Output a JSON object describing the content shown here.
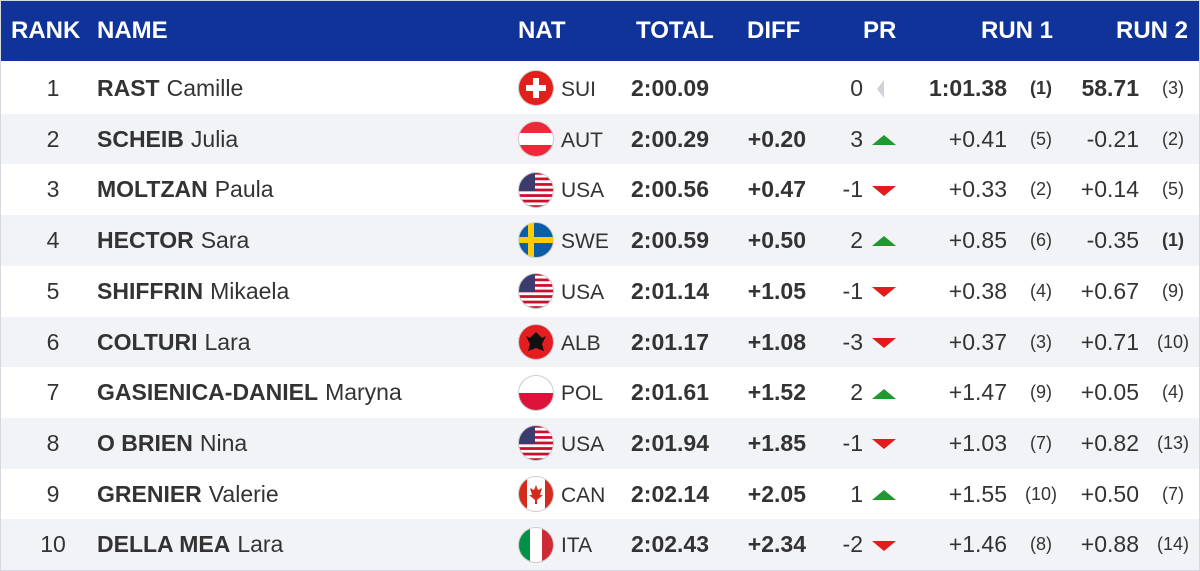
{
  "header": [
    "RANK",
    "NAME",
    "NAT",
    "TOTAL",
    "DIFF",
    "PR",
    "RUN 1",
    "RUN 2"
  ],
  "rows": [
    {
      "rank": 1,
      "last": "RAST",
      "first": "Camille",
      "nat": "SUI",
      "total": "2:00.09",
      "pr": 0,
      "run1": "1:01.38",
      "run1_rank": "(1)",
      "run2": "58.71",
      "run2_rank": "(3)"
    },
    {
      "rank": 2,
      "last": "SCHEIB",
      "first": "Julia",
      "nat": "AUT",
      "total": "2:00.29",
      "diff": "+0.20",
      "pr": 3,
      "run1": "+0.41",
      "run1_rank": "(5)",
      "run2": "-0.21",
      "run2_rank": "(2)"
    },
    {
      "rank": 3,
      "last": "MOLTZAN",
      "first": "Paula",
      "nat": "USA",
      "total": "2:00.56",
      "diff": "+0.47",
      "pr": -1,
      "run1": "+0.33",
      "run1_rank": "(2)",
      "run2": "+0.14",
      "run2_rank": "(5)"
    },
    {
      "rank": 4,
      "last": "HECTOR",
      "first": "Sara",
      "nat": "SWE",
      "total": "2:00.59",
      "diff": "+0.50",
      "pr": 2,
      "run1": "+0.85",
      "run1_rank": "(6)",
      "run2": "-0.35",
      "run2_rank": "(1)"
    },
    {
      "rank": 5,
      "last": "SHIFFRIN",
      "first": "Mikaela",
      "nat": "USA",
      "total": "2:01.14",
      "diff": "+1.05",
      "pr": -1,
      "run1": "+0.38",
      "run1_rank": "(4)",
      "run2": "+0.67",
      "run2_rank": "(9)"
    },
    {
      "rank": 6,
      "last": "COLTURI",
      "first": "Lara",
      "nat": "ALB",
      "total": "2:01.17",
      "diff": "+1.08",
      "pr": -3,
      "run1": "+0.37",
      "run1_rank": "(3)",
      "run2": "+0.71",
      "run2_rank": "(10)"
    },
    {
      "rank": 7,
      "last": "GASIENICA-DANIEL",
      "first": "Maryna",
      "nat": "POL",
      "total": "2:01.61",
      "diff": "+1.52",
      "pr": 2,
      "run1": "+1.47",
      "run1_rank": "(9)",
      "run2": "+0.05",
      "run2_rank": "(4)"
    },
    {
      "rank": 8,
      "last": "O BRIEN",
      "first": "Nina",
      "nat": "USA",
      "total": "2:01.94",
      "diff": "+1.85",
      "pr": -1,
      "run1": "+1.03",
      "run1_rank": "(7)",
      "run2": "+0.82",
      "run2_rank": "(13)"
    },
    {
      "rank": 9,
      "last": "GRENIER",
      "first": "Valerie",
      "nat": "CAN",
      "total": "2:02.14",
      "diff": "+2.05",
      "pr": 1,
      "run1": "+1.55",
      "run1_rank": "(10)",
      "run2": "+0.50",
      "run2_rank": "(7)"
    },
    {
      "rank": 10,
      "last": "DELLA MEA",
      "first": "Lara",
      "nat": "ITA",
      "total": "2:02.43",
      "diff": "+2.34",
      "pr": -2,
      "run1": "+1.46",
      "run1_rank": "(8)",
      "run2": "+0.88",
      "run2_rank": "(14)"
    }
  ]
}
